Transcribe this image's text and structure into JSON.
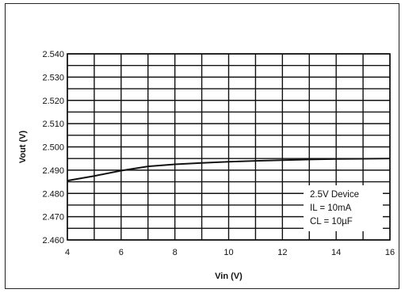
{
  "chart_data": {
    "type": "line",
    "xlabel": "Vin (V)",
    "ylabel": "Vout (V)",
    "xlim": [
      4,
      16
    ],
    "ylim": [
      2.46,
      2.54
    ],
    "x_ticks": [
      "4",
      "6",
      "8",
      "10",
      "12",
      "14",
      "16"
    ],
    "y_ticks": [
      "2.460",
      "2.470",
      "2.480",
      "2.490",
      "2.500",
      "2.510",
      "2.520",
      "2.530",
      "2.540"
    ],
    "grid": true,
    "legend_position": "bottom-right",
    "annotation": [
      "2.5V Device",
      "IL = 10mA",
      "CL = 10µF"
    ],
    "series": [
      {
        "x": [
          4,
          5,
          6,
          7,
          8,
          9,
          10,
          11,
          12,
          13,
          14,
          15,
          16
        ],
        "y": [
          2.4855,
          2.4875,
          2.4898,
          2.4916,
          2.4925,
          2.4931,
          2.4936,
          2.494,
          2.4943,
          2.4946,
          2.4948,
          2.4949,
          2.495
        ]
      }
    ]
  }
}
